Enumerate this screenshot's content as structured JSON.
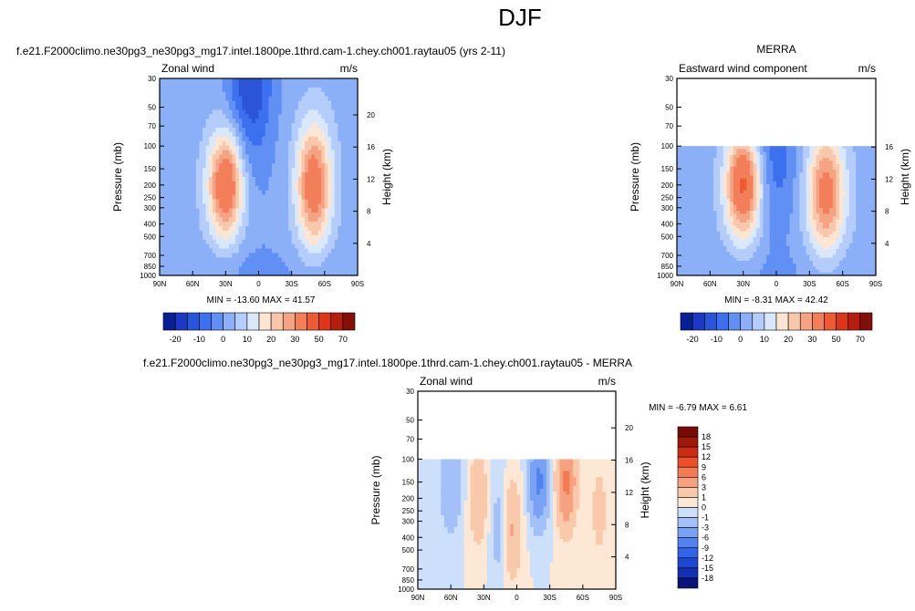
{
  "page_title": "DJF",
  "chart_data": [
    {
      "type": "heatmap",
      "panel_title": "f.e21.F2000climo.ne30pg3_ne30pg3_mg17.intel.1800pe.1thrd.cam-1.chey.ch001.raytau05 (yrs 2-11)",
      "left_label": "Zonal wind",
      "right_label": "m/s",
      "ylabel": "Pressure (mb)",
      "y2label": "Height (km)",
      "x_tick_labels": [
        "90N",
        "60N",
        "30N",
        "0",
        "30S",
        "60S",
        "90S"
      ],
      "y_tick_labels": [
        "30",
        "50",
        "70",
        "100",
        "150",
        "200",
        "250",
        "300",
        "400",
        "500",
        "700",
        "850",
        "1000"
      ],
      "y_tick_values": [
        30,
        50,
        70,
        100,
        150,
        200,
        250,
        300,
        400,
        500,
        700,
        850,
        1000
      ],
      "y2_tick_labels": [
        "20",
        "16",
        "12",
        "8",
        "4"
      ],
      "y2_tick_values": [
        20,
        16,
        12,
        8,
        4
      ],
      "stats": "MIN = -13.60   MAX = 41.57",
      "data_top_pressure": 30,
      "colorbar_labels": [
        "-20",
        "-10",
        "0",
        "10",
        "20",
        "30",
        "50",
        "70"
      ],
      "jets": [
        {
          "lat": 30,
          "p": 200,
          "value": 41.57
        },
        {
          "lat": -50,
          "p": 200,
          "value": 36
        }
      ],
      "minimum": {
        "lat": 5,
        "p": 30,
        "value": -13.6
      }
    },
    {
      "type": "heatmap",
      "panel_title": "MERRA",
      "left_label": "Eastward wind component",
      "right_label": "m/s",
      "ylabel": "Pressure (mb)",
      "y2label": "Height (km)",
      "x_tick_labels": [
        "90N",
        "60N",
        "30N",
        "0",
        "30S",
        "60S",
        "90S"
      ],
      "y_tick_labels": [
        "30",
        "50",
        "70",
        "100",
        "150",
        "200",
        "250",
        "300",
        "400",
        "500",
        "700",
        "850",
        "1000"
      ],
      "y_tick_values": [
        30,
        50,
        70,
        100,
        150,
        200,
        250,
        300,
        400,
        500,
        700,
        850,
        1000
      ],
      "y2_tick_labels": [
        "16",
        "12",
        "8",
        "4"
      ],
      "y2_tick_values": [
        16,
        12,
        8,
        4
      ],
      "stats": "MIN = -8.31   MAX = 42.42",
      "data_top_pressure": 100,
      "colorbar_labels": [
        "-20",
        "-10",
        "0",
        "10",
        "20",
        "30",
        "50",
        "70"
      ],
      "jets": [
        {
          "lat": 30,
          "p": 200,
          "value": 42.42
        },
        {
          "lat": -45,
          "p": 250,
          "value": 34
        }
      ],
      "minimum": {
        "lat": 0,
        "p": 100,
        "value": -8.31
      }
    },
    {
      "type": "heatmap",
      "panel_title": "f.e21.F2000climo.ne30pg3_ne30pg3_mg17.intel.1800pe.1thrd.cam-1.chey.ch001.raytau05 - MERRA",
      "left_label": "Zonal wind",
      "right_label": "m/s",
      "ylabel": "Pressure (mb)",
      "y2label": "Height (km)",
      "x_tick_labels": [
        "90N",
        "60N",
        "30N",
        "0",
        "30S",
        "60S",
        "90S"
      ],
      "y_tick_labels": [
        "30",
        "50",
        "70",
        "100",
        "150",
        "200",
        "250",
        "300",
        "400",
        "500",
        "700",
        "850",
        "1000"
      ],
      "y_tick_values": [
        30,
        50,
        70,
        100,
        150,
        200,
        250,
        300,
        400,
        500,
        700,
        850,
        1000
      ],
      "y2_tick_labels": [
        "20",
        "16",
        "12",
        "8",
        "4"
      ],
      "y2_tick_values": [
        20,
        16,
        12,
        8,
        4
      ],
      "stats": "MIN = -6.79   MAX =  6.61",
      "data_top_pressure": 100,
      "colorbar_labels": [
        "18",
        "15",
        "12",
        "9",
        "6",
        "3",
        "1",
        "0",
        "-1",
        "-3",
        "-6",
        "-9",
        "-12",
        "-15",
        "-18"
      ],
      "maximum": {
        "lat": -45,
        "p": 150,
        "value": 6.61
      },
      "minimum": {
        "lat": -20,
        "p": 150,
        "value": -6.79
      }
    }
  ],
  "colors": {
    "abs_scale": [
      "#0a1e96",
      "#1c38c6",
      "#2a55d8",
      "#3c70ee",
      "#6090f4",
      "#8cb0f8",
      "#b4cdfb",
      "#dae8fc",
      "#fce6d2",
      "#f9c8ac",
      "#f5a483",
      "#f27e5a",
      "#ee5a32",
      "#dc3518",
      "#b41e0c",
      "#821008"
    ],
    "diff_scale": [
      "#0a1478",
      "#1430b4",
      "#1e48d2",
      "#3264ea",
      "#5082f0",
      "#7aa2f4",
      "#a4c0f8",
      "#cce0fc",
      "#fce8d4",
      "#fac8aa",
      "#f6a280",
      "#f27a54",
      "#ec5028",
      "#cc2c10",
      "#a01808",
      "#780c04"
    ]
  }
}
